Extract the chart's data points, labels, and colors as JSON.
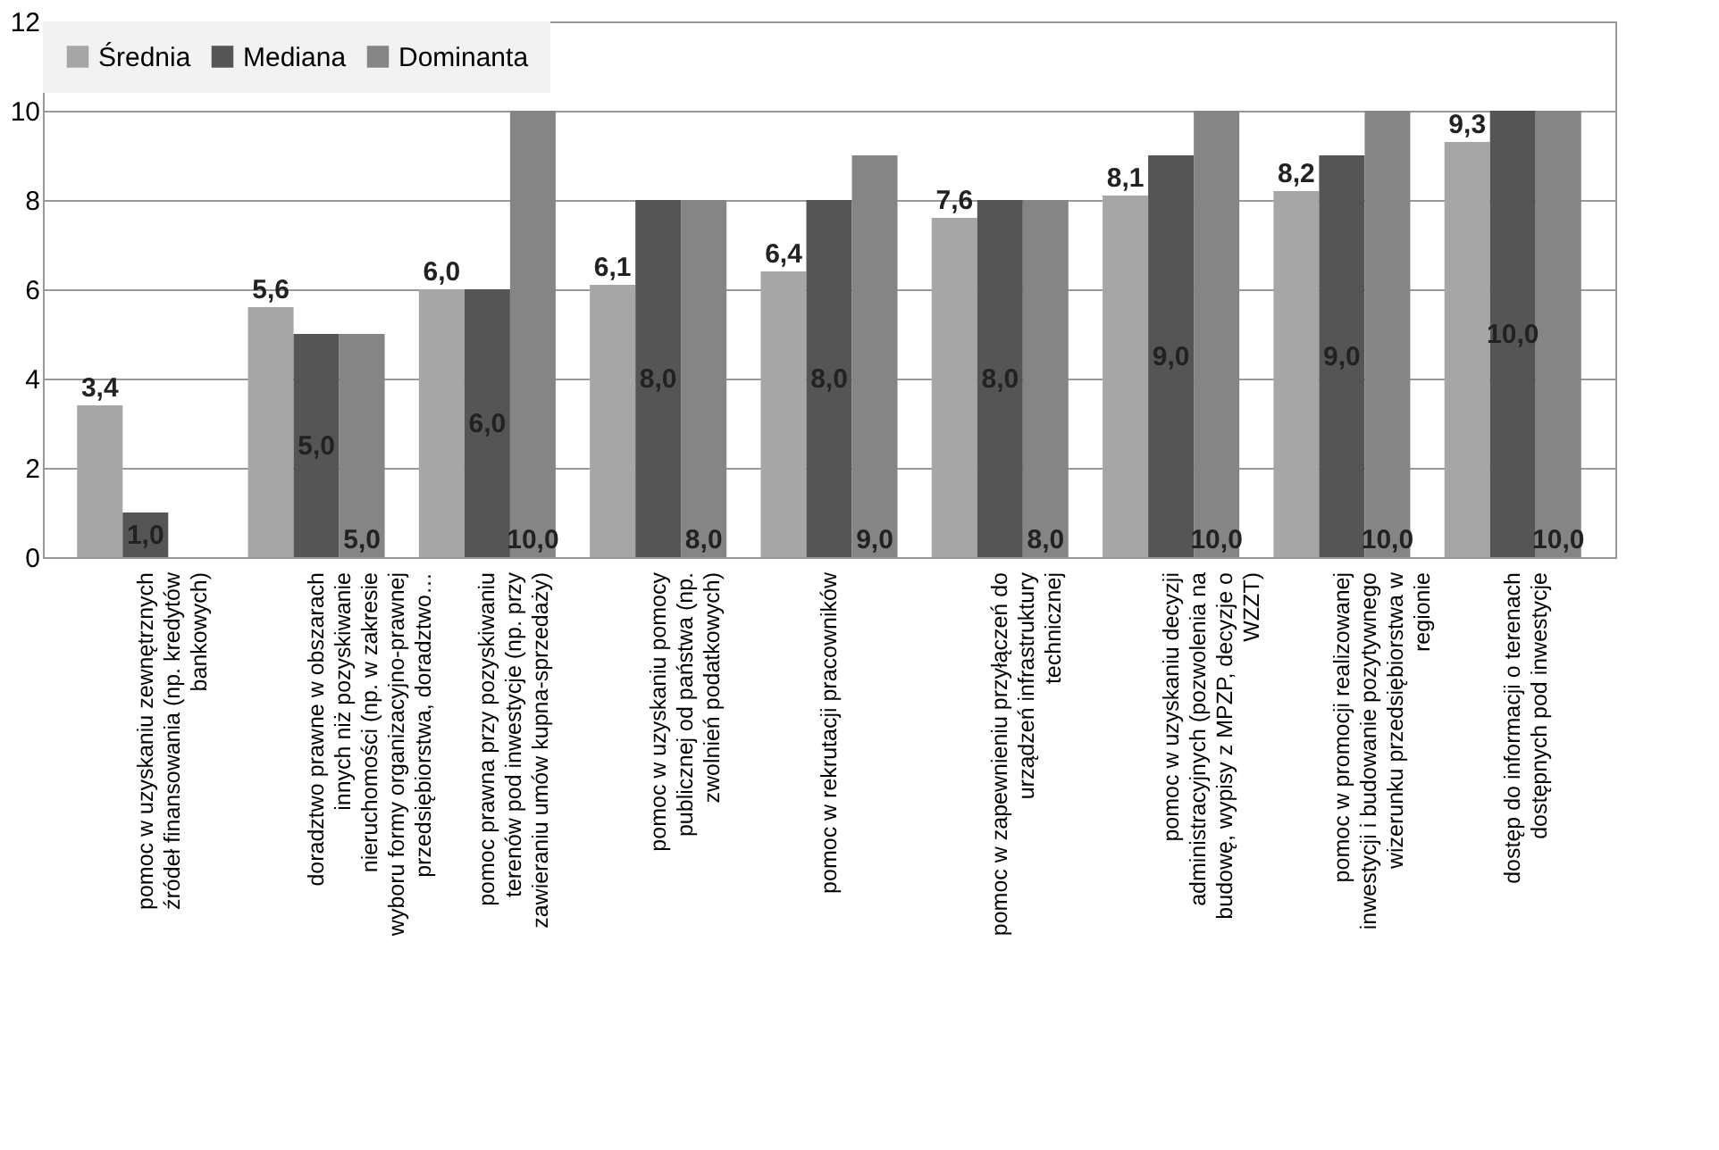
{
  "chart_data": {
    "type": "bar",
    "categories": [
      "pomoc w uzyskaniu zewnętrznych źródeł finansowania (np. kredytów bankowych)",
      "doradztwo prawne w obszarach innych niż pozyskiwanie nieruchomości (np. w zakresie wyboru formy organizacyjno-prawnej przedsiębiorstwa, doradztwo…",
      "pomoc prawna przy pozyskiwaniu terenów pod inwestycje (np. przy zawieraniu umów kupna-sprzedaży)",
      "pomoc w uzyskaniu pomocy publicznej od państwa (np. zwolnień podatkowych)",
      "pomoc w rekrutacji pracowników",
      "pomoc w zapewnieniu przyłączeń do urządzeń infrastruktury technicznej",
      "pomoc w uzyskaniu decyzji administracyjnych (pozwolenia na budowę, wypisy z MPZP, decyzje o WZZT)",
      "pomoc w promocji realizowanej inwestycji i budowanie pozytywnego wizerunku przedsiębiorstwa w regionie",
      "dostęp do informacji o terenach dostępnych pod inwestycje"
    ],
    "series": [
      {
        "name": "Średnia",
        "color": "#a6a6a6",
        "values": [
          3.4,
          5.6,
          6.0,
          6.1,
          6.4,
          7.6,
          8.1,
          8.2,
          9.3
        ],
        "value_labels": [
          "3,4",
          "5,6",
          "6,0",
          "6,1",
          "6,4",
          "7,6",
          "8,1",
          "8,2",
          "9,3"
        ]
      },
      {
        "name": "Mediana",
        "color": "#555555",
        "values": [
          1,
          5,
          6,
          8,
          8,
          8,
          9,
          9,
          10
        ],
        "value_labels": [
          "1,0",
          "5,0",
          "6,0",
          "8,0",
          "8,0",
          "8,0",
          "9,0",
          "9,0",
          "10,0"
        ]
      },
      {
        "name": "Dominanta",
        "color": "#858585",
        "values": [
          null,
          5,
          10,
          8,
          9,
          8,
          10,
          10,
          10
        ],
        "value_labels": [
          null,
          "5,0",
          "10,0",
          "8,0",
          "9,0",
          "8,0",
          "10,0",
          "10,0",
          "10,0"
        ]
      }
    ],
    "ylim": [
      0,
      12
    ],
    "yticks": [
      0,
      2,
      4,
      6,
      8,
      10,
      12
    ],
    "grid": "y",
    "legend": "top left"
  }
}
